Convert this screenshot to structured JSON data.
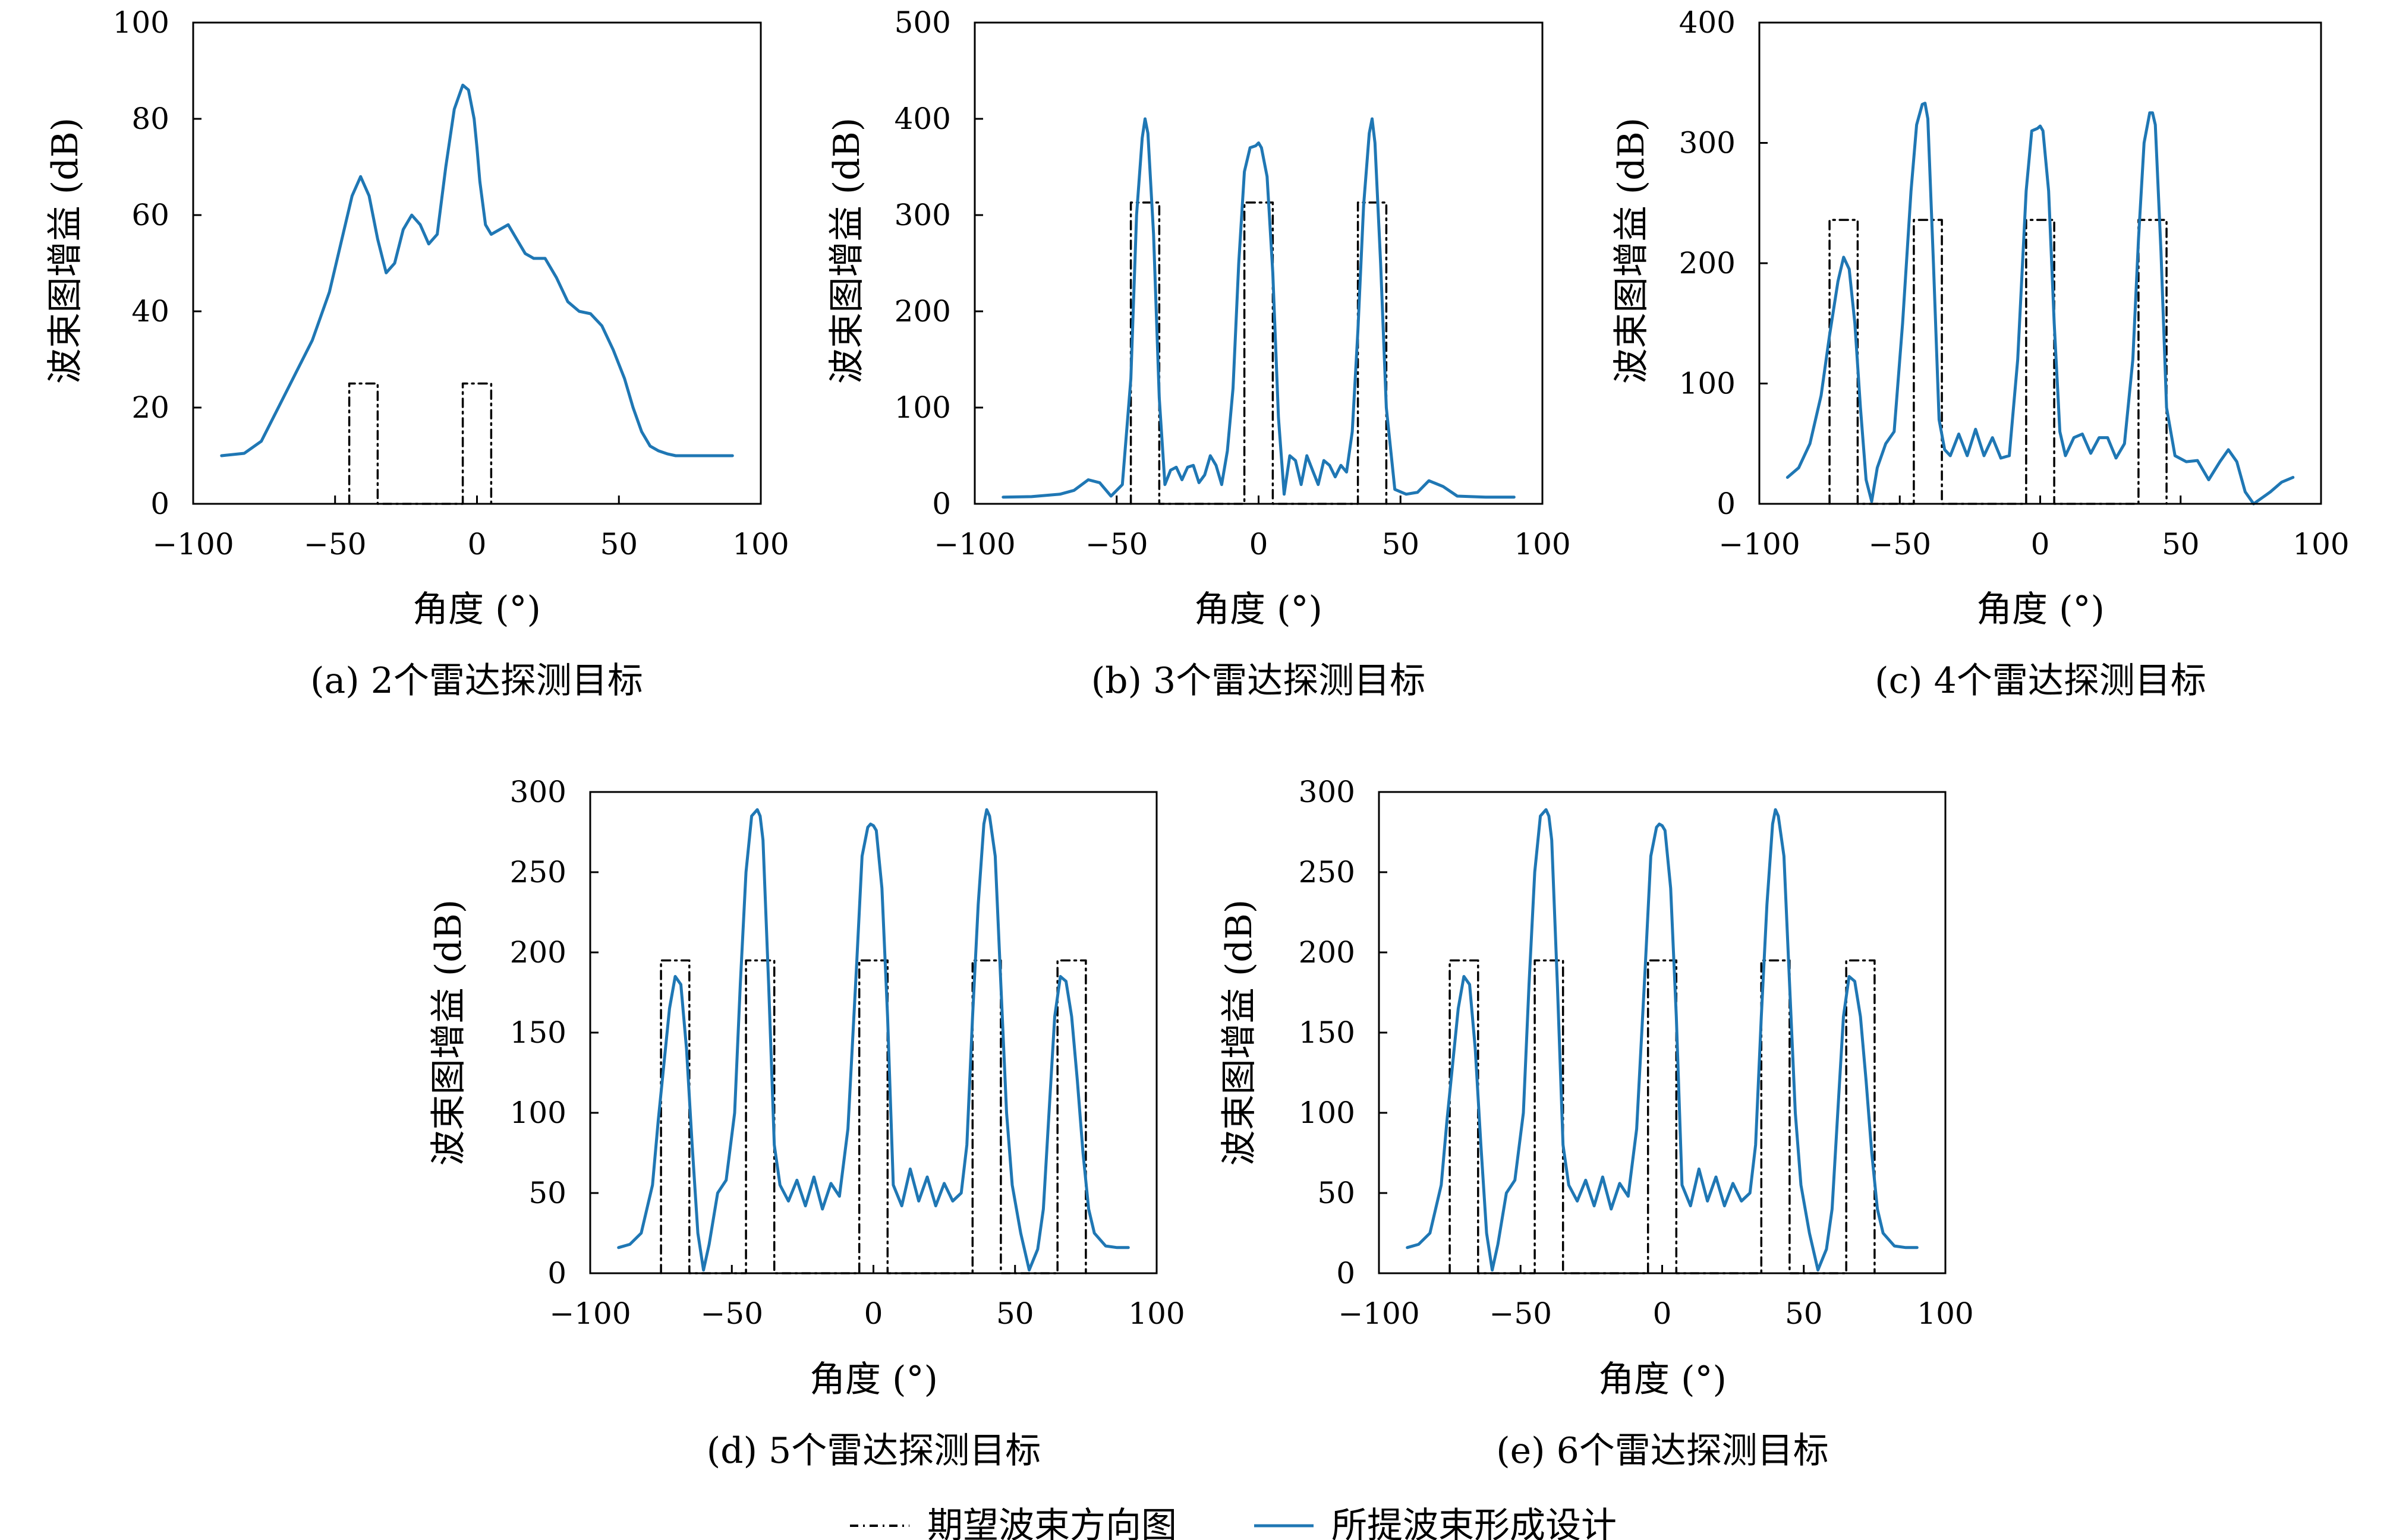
{
  "colors": {
    "series_designed": "#1f77b4",
    "series_desired": "#000000",
    "axes": "#000000",
    "background": "#ffffff"
  },
  "legend": {
    "placement": "bottom-center",
    "entries": [
      {
        "label": "期望波束方向图",
        "style": "dash-dot",
        "color": "#000000"
      },
      {
        "label": "所提波束形成设计",
        "style": "solid",
        "color": "#1f77b4"
      }
    ]
  },
  "chart_data": [
    {
      "type": "line",
      "caption": "(a) 2个雷达探测目标",
      "xlabel": "角度 (°)",
      "ylabel": "波束图增益 (dB)",
      "xlim": [
        -100,
        100
      ],
      "ylim": [
        0,
        100
      ],
      "xticks": [
        -100,
        -50,
        0,
        50,
        100
      ],
      "yticks": [
        0,
        20,
        40,
        60,
        80,
        100
      ],
      "grid": false,
      "series": [
        {
          "name": "期望波束方向图",
          "style": "dash-dot",
          "color": "#000000",
          "x": [
            -45,
            -45,
            -35,
            -35,
            -5,
            -5,
            5,
            5
          ],
          "y": [
            0,
            25,
            25,
            0,
            0,
            25,
            25,
            0
          ]
        },
        {
          "name": "所提波束形成设计",
          "style": "solid",
          "color": "#1f77b4",
          "x": [
            -90,
            -82,
            -76,
            -70,
            -64,
            -58,
            -52,
            -48,
            -44,
            -41,
            -38,
            -35,
            -32,
            -29,
            -26,
            -23,
            -20,
            -17,
            -14,
            -11,
            -8,
            -5,
            -3,
            -1,
            0,
            1,
            3,
            5,
            8,
            11,
            14,
            17,
            20,
            24,
            28,
            32,
            36,
            40,
            44,
            48,
            52,
            55,
            58,
            61,
            64,
            67,
            70,
            75,
            80,
            85,
            90
          ],
          "y": [
            10,
            10.5,
            13,
            20,
            27,
            34,
            44,
            54,
            64,
            68,
            64,
            55,
            48,
            50,
            57,
            60,
            58,
            54,
            56,
            70,
            82,
            87,
            86,
            80,
            74,
            67,
            58,
            56,
            57,
            58,
            55,
            52,
            51,
            51,
            47,
            42,
            40,
            39.5,
            37,
            32,
            26,
            20,
            15,
            12,
            11,
            10.4,
            10,
            10,
            10,
            10,
            10
          ]
        }
      ]
    },
    {
      "type": "line",
      "caption": "(b) 3个雷达探测目标",
      "xlabel": "角度 (°)",
      "ylabel": "波束图增益 (dB)",
      "xlim": [
        -100,
        100
      ],
      "ylim": [
        0,
        500
      ],
      "xticks": [
        -100,
        -50,
        0,
        50,
        100
      ],
      "yticks": [
        0,
        100,
        200,
        300,
        400,
        500
      ],
      "grid": false,
      "series": [
        {
          "name": "期望波束方向图",
          "style": "dash-dot",
          "color": "#000000",
          "x": [
            -45,
            -45,
            -35,
            -35,
            -5,
            -5,
            5,
            5,
            35,
            35,
            45,
            45
          ],
          "y": [
            0,
            313,
            313,
            0,
            0,
            313,
            313,
            0,
            0,
            313,
            313,
            0
          ]
        },
        {
          "name": "所提波束形成设计",
          "style": "solid",
          "color": "#1f77b4",
          "x": [
            -90,
            -80,
            -70,
            -65,
            -60,
            -56,
            -52,
            -48,
            -45,
            -43,
            -41,
            -40,
            -39,
            -37,
            -35,
            -33,
            -31,
            -29,
            -27,
            -25,
            -23,
            -21,
            -19,
            -17,
            -15,
            -13,
            -11,
            -9,
            -7,
            -5,
            -3,
            -1,
            0,
            1,
            3,
            5,
            7,
            9,
            11,
            13,
            15,
            17,
            19,
            21,
            23,
            25,
            27,
            29,
            31,
            33,
            35,
            37,
            39,
            40,
            41,
            43,
            45,
            48,
            52,
            56,
            60,
            65,
            70,
            80,
            90
          ],
          "y": [
            7,
            7.5,
            10,
            14,
            25,
            22,
            8,
            20,
            130,
            300,
            380,
            400,
            385,
            280,
            110,
            20,
            35,
            38,
            25,
            38,
            40,
            22,
            30,
            50,
            40,
            20,
            55,
            120,
            250,
            345,
            370,
            372,
            375,
            370,
            340,
            240,
            90,
            10,
            50,
            45,
            20,
            50,
            35,
            20,
            45,
            40,
            28,
            40,
            33,
            75,
            180,
            310,
            385,
            400,
            375,
            250,
            100,
            15,
            10,
            12,
            24,
            18,
            8,
            7,
            7
          ]
        }
      ]
    },
    {
      "type": "line",
      "caption": "(c) 4个雷达探测目标",
      "xlabel": "角度 (°)",
      "ylabel": "波束图增益 (dB)",
      "xlim": [
        -100,
        100
      ],
      "ylim": [
        0,
        400
      ],
      "xticks": [
        -100,
        -50,
        0,
        50,
        100
      ],
      "yticks": [
        0,
        100,
        200,
        300,
        400
      ],
      "grid": false,
      "series": [
        {
          "name": "期望波束方向图",
          "style": "dash-dot",
          "color": "#000000",
          "x": [
            -75,
            -75,
            -65,
            -65,
            -45,
            -45,
            -35,
            -35,
            -5,
            -5,
            5,
            5,
            35,
            35,
            45,
            45
          ],
          "y": [
            0,
            236,
            236,
            0,
            0,
            236,
            236,
            0,
            0,
            236,
            236,
            0,
            0,
            236,
            236,
            0
          ]
        },
        {
          "name": "所提波束形成设计",
          "style": "solid",
          "color": "#1f77b4",
          "x": [
            -90,
            -86,
            -82,
            -78,
            -75,
            -72,
            -70,
            -68,
            -66,
            -64,
            -62,
            -60,
            -58,
            -55,
            -52,
            -49,
            -46,
            -44,
            -42,
            -41,
            -40,
            -38,
            -36,
            -34,
            -32,
            -29,
            -26,
            -23,
            -20,
            -17,
            -14,
            -11,
            -8,
            -5,
            -3,
            -1,
            0,
            1,
            3,
            5,
            7,
            9,
            12,
            15,
            18,
            21,
            24,
            27,
            30,
            33,
            35,
            37,
            39,
            40,
            41,
            43,
            45,
            48,
            52,
            56,
            60,
            64,
            67,
            70,
            73,
            76,
            79,
            82,
            86,
            90
          ],
          "y": [
            22,
            30,
            50,
            90,
            140,
            185,
            205,
            195,
            150,
            80,
            20,
            2,
            30,
            50,
            60,
            150,
            260,
            315,
            332,
            333,
            320,
            200,
            70,
            45,
            40,
            58,
            40,
            62,
            40,
            55,
            38,
            40,
            120,
            260,
            310,
            312,
            314,
            310,
            260,
            150,
            60,
            40,
            55,
            58,
            42,
            55,
            55,
            38,
            50,
            120,
            220,
            300,
            325,
            325,
            315,
            210,
            80,
            40,
            35,
            36,
            20,
            35,
            45,
            35,
            10,
            0,
            5,
            10,
            18,
            22
          ]
        }
      ]
    },
    {
      "type": "line",
      "caption": "(d) 5个雷达探测目标",
      "xlabel": "角度 (°)",
      "ylabel": "波束图增益 (dB)",
      "xlim": [
        -100,
        100
      ],
      "ylim": [
        0,
        300
      ],
      "xticks": [
        -100,
        -50,
        0,
        50,
        100
      ],
      "yticks": [
        0,
        50,
        100,
        150,
        200,
        250,
        300
      ],
      "grid": false,
      "series": [
        {
          "name": "期望波束方向图",
          "style": "dash-dot",
          "color": "#000000",
          "x": [
            -75,
            -75,
            -65,
            -65,
            -45,
            -45,
            -35,
            -35,
            -5,
            -5,
            5,
            5,
            35,
            35,
            45,
            45,
            65,
            65,
            75,
            75
          ],
          "y": [
            0,
            195,
            195,
            0,
            0,
            195,
            195,
            0,
            0,
            195,
            195,
            0,
            0,
            195,
            195,
            0,
            0,
            195,
            195,
            0
          ]
        },
        {
          "name": "所提波束形成设计",
          "style": "solid",
          "color": "#1f77b4",
          "x": [
            -90,
            -86,
            -82,
            -78,
            -76,
            -74,
            -72,
            -70,
            -68,
            -66,
            -64,
            -62,
            -60,
            -58,
            -55,
            -52,
            -49,
            -47,
            -45,
            -43,
            -41,
            -40,
            -39,
            -37,
            -35,
            -33,
            -30,
            -27,
            -24,
            -21,
            -18,
            -15,
            -12,
            -9,
            -6,
            -4,
            -2,
            -1,
            0,
            1,
            3,
            5,
            7,
            10,
            13,
            16,
            19,
            22,
            25,
            28,
            31,
            33,
            35,
            37,
            39,
            40,
            41,
            43,
            45,
            47,
            49,
            52,
            55,
            58,
            60,
            62,
            64,
            66,
            68,
            70,
            72,
            74,
            76,
            78,
            82,
            86,
            90
          ],
          "y": [
            16,
            18,
            25,
            55,
            95,
            130,
            165,
            185,
            180,
            140,
            80,
            25,
            2,
            18,
            50,
            58,
            100,
            180,
            250,
            285,
            289,
            285,
            270,
            180,
            80,
            55,
            45,
            58,
            42,
            60,
            40,
            56,
            48,
            90,
            190,
            260,
            278,
            280,
            279,
            276,
            240,
            160,
            55,
            42,
            65,
            45,
            60,
            42,
            56,
            45,
            50,
            80,
            160,
            230,
            280,
            289,
            285,
            260,
            180,
            100,
            55,
            25,
            2,
            15,
            40,
            100,
            160,
            185,
            182,
            160,
            120,
            75,
            40,
            25,
            17,
            16,
            16
          ]
        }
      ]
    },
    {
      "type": "line",
      "caption": "(e) 6个雷达探测目标",
      "xlabel": "角度 (°)",
      "ylabel": "波束图增益 (dB)",
      "xlim": [
        -100,
        100
      ],
      "ylim": [
        0,
        300
      ],
      "xticks": [
        -100,
        -50,
        0,
        50,
        100
      ],
      "yticks": [
        0,
        50,
        100,
        150,
        200,
        250,
        300
      ],
      "grid": false,
      "series": [
        {
          "name": "期望波束方向图",
          "style": "dash-dot",
          "color": "#000000",
          "x": [
            -75,
            -75,
            -65,
            -65,
            -45,
            -45,
            -35,
            -35,
            -5,
            -5,
            5,
            5,
            35,
            35,
            45,
            45,
            65,
            65,
            75,
            75
          ],
          "y": [
            0,
            195,
            195,
            0,
            0,
            195,
            195,
            0,
            0,
            195,
            195,
            0,
            0,
            195,
            195,
            0,
            0,
            195,
            195,
            0
          ]
        },
        {
          "name": "所提波束形成设计",
          "style": "solid",
          "color": "#1f77b4",
          "x": [
            -90,
            -86,
            -82,
            -78,
            -76,
            -74,
            -72,
            -70,
            -68,
            -66,
            -64,
            -62,
            -60,
            -58,
            -55,
            -52,
            -49,
            -47,
            -45,
            -43,
            -41,
            -40,
            -39,
            -37,
            -35,
            -33,
            -30,
            -27,
            -24,
            -21,
            -18,
            -15,
            -12,
            -9,
            -6,
            -4,
            -2,
            -1,
            0,
            1,
            3,
            5,
            7,
            10,
            13,
            16,
            19,
            22,
            25,
            28,
            31,
            33,
            35,
            37,
            39,
            40,
            41,
            43,
            45,
            47,
            49,
            52,
            55,
            58,
            60,
            62,
            64,
            66,
            68,
            70,
            72,
            74,
            76,
            78,
            82,
            86,
            90
          ],
          "y": [
            16,
            18,
            25,
            55,
            95,
            130,
            165,
            185,
            180,
            140,
            80,
            25,
            2,
            18,
            50,
            58,
            100,
            180,
            250,
            285,
            289,
            285,
            270,
            180,
            80,
            55,
            45,
            58,
            42,
            60,
            40,
            56,
            48,
            90,
            190,
            260,
            278,
            280,
            279,
            276,
            240,
            160,
            55,
            42,
            65,
            45,
            60,
            42,
            56,
            45,
            50,
            80,
            160,
            230,
            280,
            289,
            285,
            260,
            180,
            100,
            55,
            25,
            2,
            15,
            40,
            100,
            160,
            185,
            182,
            160,
            120,
            75,
            40,
            25,
            17,
            16,
            16
          ]
        }
      ]
    }
  ]
}
